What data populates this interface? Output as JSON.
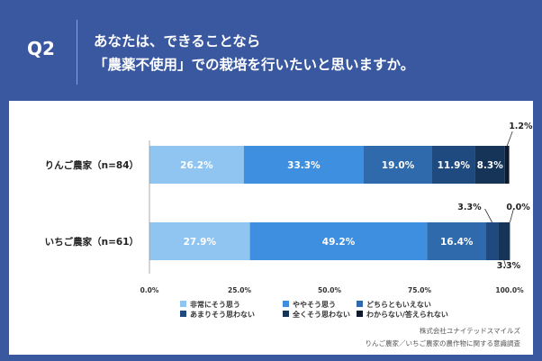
{
  "header": {
    "q_label": "Q2",
    "title_line1": "あなたは、できることなら",
    "title_line2": "「農薬不使用」での栽培を行いたいと思いますか。"
  },
  "chart_data": {
    "type": "bar",
    "orientation": "horizontal",
    "stacked": true,
    "categories": [
      "りんご農家（n=84）",
      "いちご農家（n=61）"
    ],
    "series": [
      {
        "name": "非常にそう思う",
        "color": "#8fc5f0",
        "values": [
          26.2,
          27.9
        ]
      },
      {
        "name": "ややそう思う",
        "color": "#3f8fe0",
        "values": [
          33.3,
          49.2
        ]
      },
      {
        "name": "どちらともいえない",
        "color": "#2f6aad",
        "values": [
          19.0,
          16.4
        ]
      },
      {
        "name": "あまりそう思わない",
        "color": "#1f4a80",
        "values": [
          11.9,
          3.3
        ]
      },
      {
        "name": "全くそう思わない",
        "color": "#163358",
        "values": [
          8.3,
          3.3
        ]
      },
      {
        "name": "わからない/答えられない",
        "color": "#0d1a2e",
        "values": [
          1.2,
          0.0
        ]
      }
    ],
    "data_labels": [
      [
        "26.2%",
        "33.3%",
        "19.0%",
        "11.9%",
        "8.3%",
        "1.2%"
      ],
      [
        "27.9%",
        "49.2%",
        "16.4%",
        "3.3%",
        "3.3%",
        "0.0%"
      ]
    ],
    "xlim": [
      0,
      100
    ],
    "xticks": [
      "0.0%",
      "25.0%",
      "50.0%",
      "75.0%",
      "100.0%"
    ],
    "legend_position": "bottom"
  },
  "source": {
    "line1": "株式会社ユナイテッドスマイルズ",
    "line2": "りんご農家／いちご農家の農作物に関する意識調査"
  }
}
